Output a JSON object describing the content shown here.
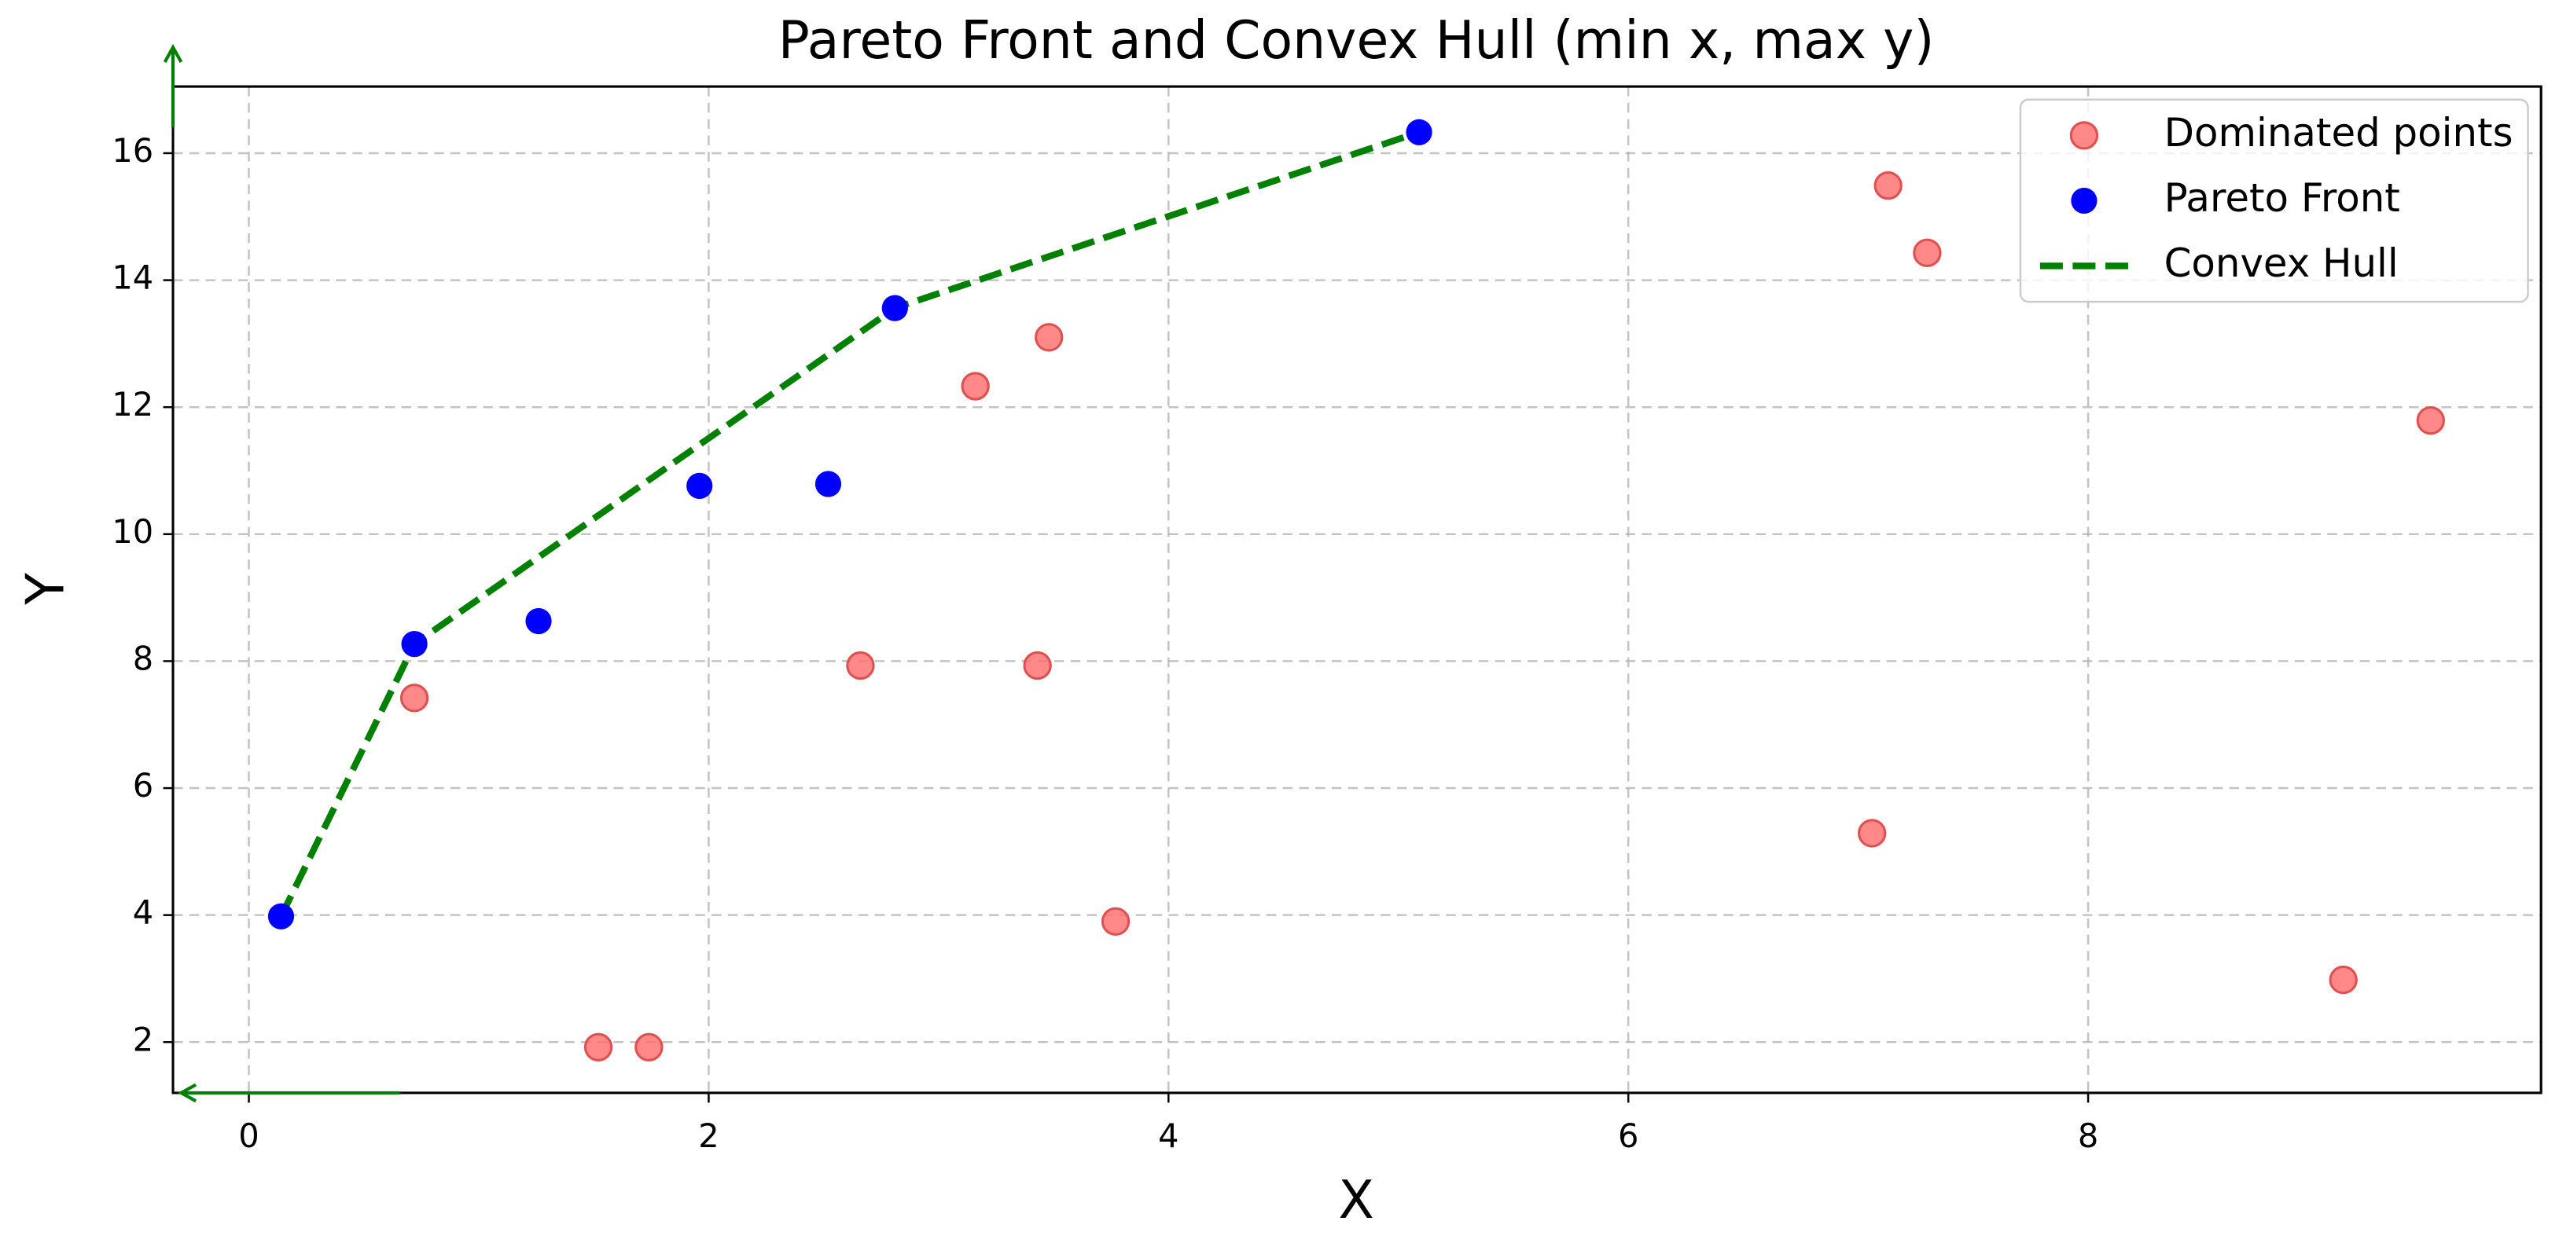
{
  "chart_data": {
    "type": "scatter",
    "title": "Pareto Front and Convex Hull (min x, max y)",
    "x_label": "X",
    "y_label": "Y",
    "xlim": [
      -0.33,
      9.97
    ],
    "ylim": [
      1.2,
      17.05
    ],
    "xticks": [
      0,
      2,
      4,
      6,
      8
    ],
    "yticks": [
      2,
      4,
      6,
      8,
      10,
      12,
      14,
      16
    ],
    "grid": true,
    "legend": "upper right",
    "series": [
      {
        "name": "Dominated points",
        "kind": "scatter",
        "color": "#ff6b6b",
        "x": [
          0.72,
          1.52,
          1.74,
          2.66,
          3.16,
          3.43,
          3.48,
          3.77,
          7.06,
          7.13,
          7.3,
          9.11,
          9.49
        ],
        "values": [
          7.42,
          1.92,
          1.92,
          7.93,
          12.33,
          7.93,
          13.1,
          3.9,
          5.29,
          15.49,
          14.43,
          2.98,
          11.79
        ]
      },
      {
        "name": "Pareto Front",
        "kind": "scatter",
        "color": "#0000ff",
        "x": [
          0.14,
          0.72,
          1.26,
          1.96,
          2.52,
          2.81,
          5.09
        ],
        "values": [
          3.98,
          8.27,
          8.63,
          10.76,
          10.79,
          13.56,
          16.33
        ]
      },
      {
        "name": "Convex Hull",
        "kind": "line",
        "color": "#008000",
        "x": [
          0.14,
          0.72,
          2.81,
          5.09
        ],
        "values": [
          3.98,
          8.27,
          13.56,
          16.33
        ]
      }
    ]
  }
}
